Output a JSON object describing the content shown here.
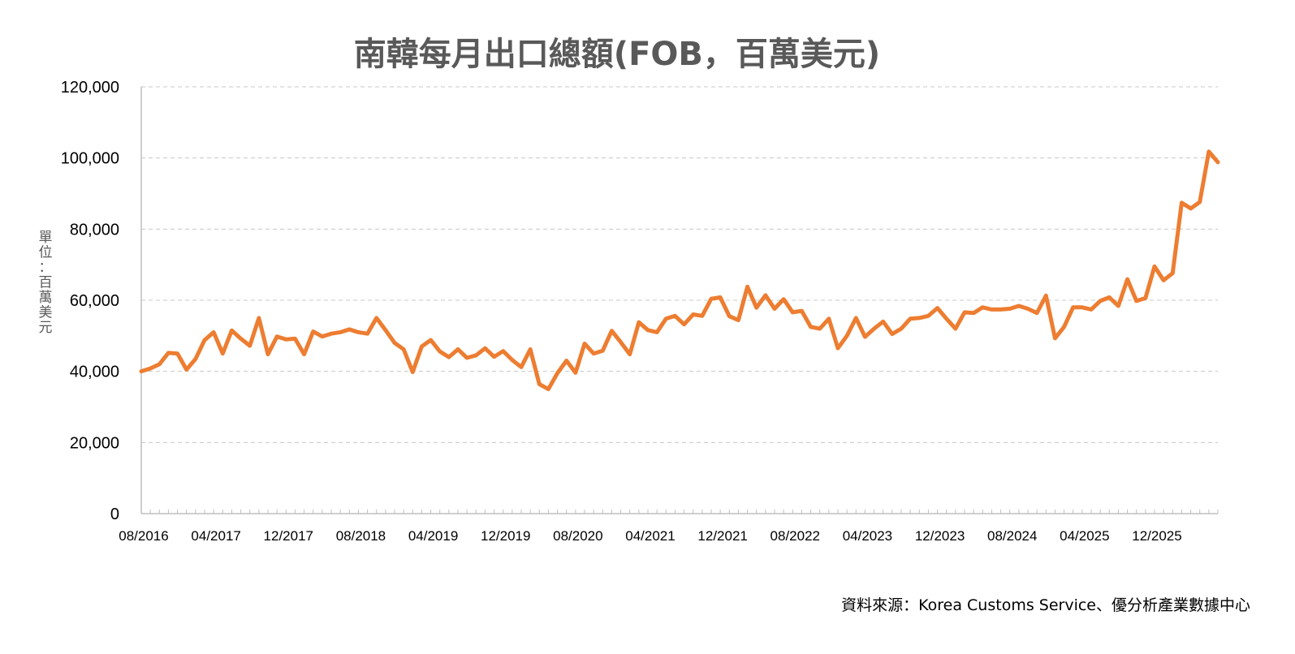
{
  "chart_data": {
    "type": "line",
    "title": "南韓每月出口總額(FOB，百萬美元)",
    "ylabel": "單位：百萬美元",
    "source": "資料來源：Korea Customs Service、優分析產業數據中心",
    "ylim": [
      0,
      120000
    ],
    "yticks": [
      "0",
      "20,000",
      "40,000",
      "60,000",
      "80,000",
      "100,000",
      "120,000"
    ],
    "ytick_values": [
      0,
      20000,
      40000,
      60000,
      80000,
      100000,
      120000
    ],
    "xtick_labels": [
      "08/2016",
      "04/2017",
      "12/2017",
      "08/2018",
      "04/2019",
      "12/2019",
      "08/2020",
      "04/2021",
      "12/2021",
      "08/2022",
      "04/2023",
      "12/2023",
      "08/2024",
      "04/2025",
      "12/2025"
    ],
    "xtick_step_months": 8,
    "grid": "horizontal-dashed",
    "line_color": "#ED7D31",
    "series": [
      {
        "name": "",
        "values": [
          40000,
          40800,
          42000,
          45200,
          45000,
          40500,
          43500,
          48800,
          51000,
          45000,
          51500,
          49200,
          47200,
          55000,
          44800,
          49800,
          49000,
          49200,
          44800,
          51200,
          49800,
          50600,
          51000,
          51800,
          51000,
          50600,
          55000,
          51600,
          48000,
          46200,
          39800,
          47000,
          48800,
          45600,
          44000,
          46200,
          43800,
          44500,
          46500,
          44100,
          45700,
          43200,
          41200,
          46200,
          36400,
          35000,
          39500,
          43000,
          39600,
          47800,
          45000,
          45800,
          51400,
          48200,
          44800,
          53800,
          51600,
          51000,
          54800,
          55600,
          53200,
          56000,
          55600,
          60400,
          60800,
          55500,
          54400,
          63800,
          57900,
          61400,
          57600,
          60300,
          56600,
          57000,
          52500,
          52000,
          54800,
          46500,
          50000,
          55000,
          49700,
          52000,
          54000,
          50500,
          52000,
          54800,
          55000,
          55600,
          57800,
          54800,
          52000,
          56600,
          56400,
          58000,
          57400,
          57400,
          57600,
          58400,
          57600,
          56400,
          61300,
          49300,
          52500,
          58000,
          58000,
          57400,
          59800,
          60800,
          58400,
          65900,
          59800,
          60600,
          69500,
          65600,
          67600,
          87400,
          85800,
          87600,
          101800,
          98800
        ]
      }
    ]
  }
}
